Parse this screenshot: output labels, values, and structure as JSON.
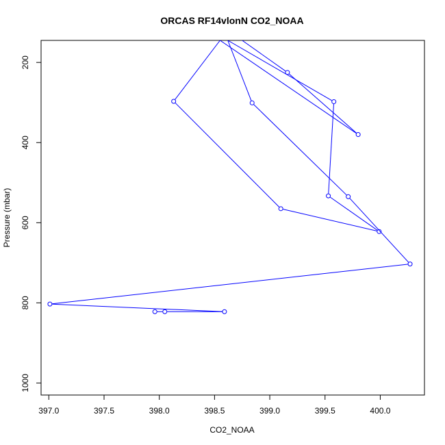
{
  "chart_data": {
    "type": "line",
    "title": "ORCAS RF14vlonN CO2_NOAA",
    "xlabel": "CO2_NOAA",
    "ylabel": "Pressure (mbar)",
    "xlim": [
      396.93,
      400.4
    ],
    "ylim": [
      1030,
      145
    ],
    "y_inverted": true,
    "x_ticks": [
      "397.0",
      "397.5",
      "398.0",
      "398.5",
      "399.0",
      "399.5",
      "400.0"
    ],
    "y_ticks": [
      "200",
      "400",
      "600",
      "800",
      "1000"
    ],
    "series": [
      {
        "color": "#0000ff",
        "marker": "open-circle",
        "points": [
          {
            "x": 398.75,
            "y": 145,
            "marker": false
          },
          {
            "x": 399.16,
            "y": 225
          },
          {
            "x": 399.8,
            "y": 380
          },
          {
            "x": 398.55,
            "y": 145,
            "marker": false
          },
          {
            "x": 398.13,
            "y": 297
          },
          {
            "x": 399.1,
            "y": 565
          },
          {
            "x": 399.99,
            "y": 622
          },
          {
            "x": 399.53,
            "y": 533
          },
          {
            "x": 399.58,
            "y": 298
          },
          {
            "x": 398.62,
            "y": 145,
            "marker": false
          },
          {
            "x": 398.84,
            "y": 301
          },
          {
            "x": 399.71,
            "y": 535
          },
          {
            "x": 400.27,
            "y": 703
          },
          {
            "x": 397.01,
            "y": 803
          },
          {
            "x": 398.59,
            "y": 822
          },
          {
            "x": 398.05,
            "y": 822
          },
          {
            "x": 397.96,
            "y": 822
          }
        ]
      }
    ]
  }
}
